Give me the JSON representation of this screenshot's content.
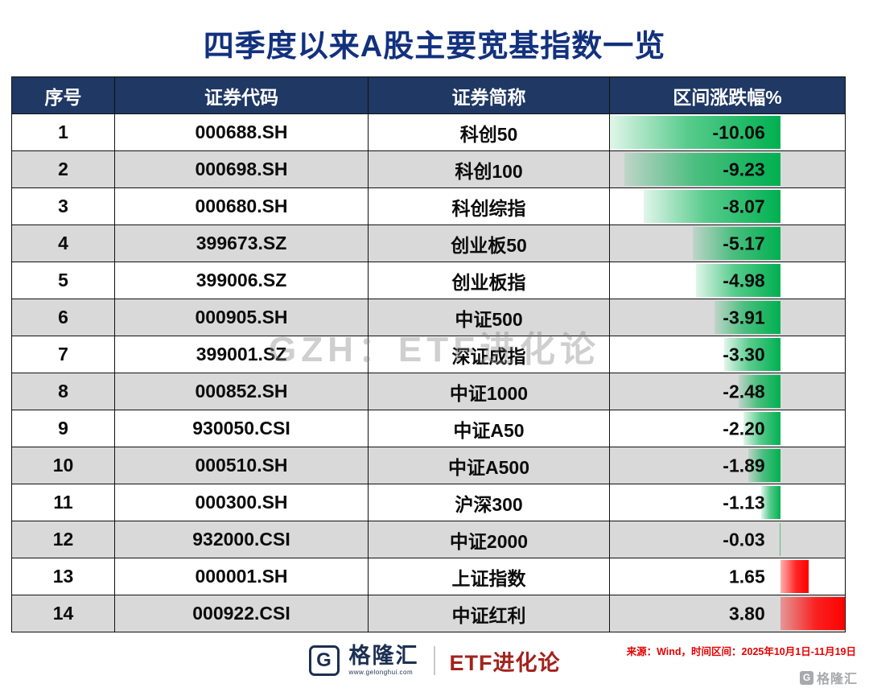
{
  "title": "四季度以来A股主要宽基指数一览",
  "watermark": "GZH：ETF进化论",
  "chart_data": {
    "type": "table",
    "columns": [
      "序号",
      "证券代码",
      "证券简称",
      "区间涨跌幅%"
    ],
    "rows": [
      {
        "no": "1",
        "code": "000688.SH",
        "name": "科创50",
        "change": -10.06
      },
      {
        "no": "2",
        "code": "000698.SH",
        "name": "科创100",
        "change": -9.23
      },
      {
        "no": "3",
        "code": "000680.SH",
        "name": "科创综指",
        "change": -8.07
      },
      {
        "no": "4",
        "code": "399673.SZ",
        "name": "创业板50",
        "change": -5.17
      },
      {
        "no": "5",
        "code": "399006.SZ",
        "name": "创业板指",
        "change": -4.98
      },
      {
        "no": "6",
        "code": "000905.SH",
        "name": "中证500",
        "change": -3.91
      },
      {
        "no": "7",
        "code": "399001.SZ",
        "name": "深证成指",
        "change": -3.3
      },
      {
        "no": "8",
        "code": "000852.SH",
        "name": "中证1000",
        "change": -2.48
      },
      {
        "no": "9",
        "code": "930050.CSI",
        "name": "中证A50",
        "change": -2.2
      },
      {
        "no": "10",
        "code": "000510.SH",
        "name": "中证A500",
        "change": -1.89
      },
      {
        "no": "11",
        "code": "000300.SH",
        "name": "沪深300",
        "change": -1.13
      },
      {
        "no": "12",
        "code": "932000.CSI",
        "name": "中证2000",
        "change": -0.03
      },
      {
        "no": "13",
        "code": "000001.SH",
        "name": "上证指数",
        "change": 1.65
      },
      {
        "no": "14",
        "code": "000922.CSI",
        "name": "中证红利",
        "change": 3.8
      }
    ],
    "bar_axis": {
      "min": -10.06,
      "max": 3.8
    },
    "negative_bar_color": "#00B050",
    "positive_bar_color": "#FF0000",
    "header_bg_color": "#1F3864",
    "alt_row_color": "#D9D9D9"
  },
  "footer": {
    "logo_letter": "G",
    "logo_name": "格隆汇",
    "logo_url": "www.gelonghui.com",
    "brand": "ETF进化论",
    "source": "来源：Wind，时间区间：2025年10月1日-11月19日",
    "corner_letter": "G",
    "corner_name": "格隆汇"
  }
}
